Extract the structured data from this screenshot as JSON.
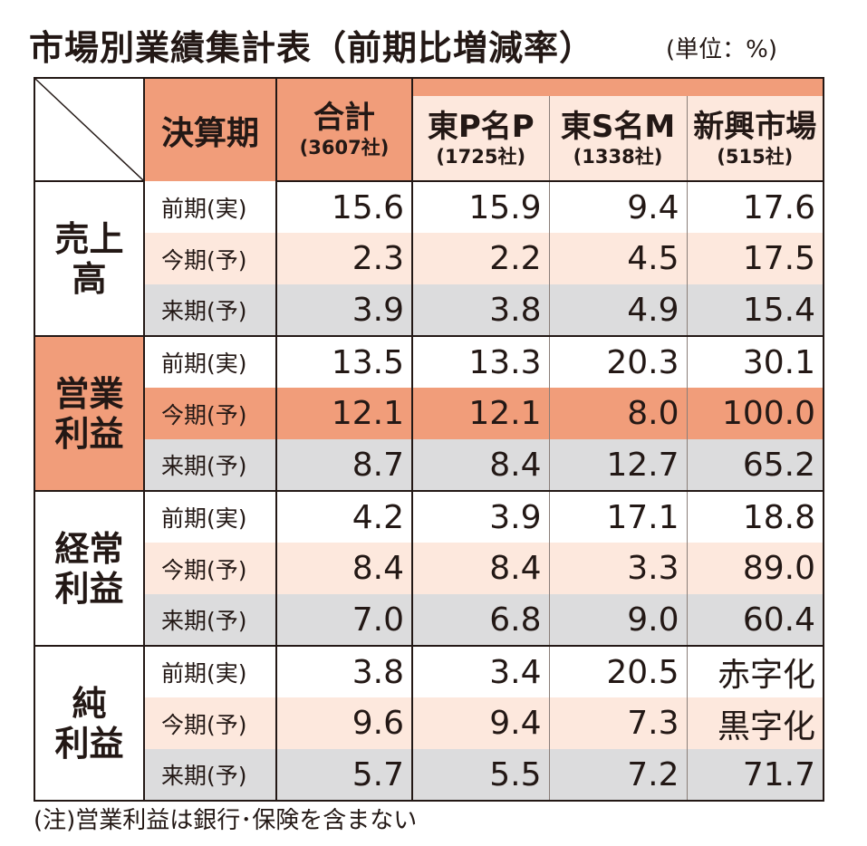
{
  "title": "市場別業績集計表（前期比増減率）",
  "unit": "(単位：%)",
  "header": {
    "period_col": "決算期",
    "columns": [
      {
        "name": "合計",
        "count": "(3607社)"
      },
      {
        "name": "東P名P",
        "count": "(1725社)"
      },
      {
        "name": "東S名M",
        "count": "(1338社)"
      },
      {
        "name": "新興市場",
        "count": "(515社)"
      }
    ]
  },
  "groups": [
    {
      "line1": "売上",
      "line2": "高",
      "rows": [
        {
          "period": "前期(実)",
          "values": [
            "15.6",
            "15.9",
            "9.4",
            "17.6"
          ]
        },
        {
          "period": "今期(予)",
          "values": [
            "2.3",
            "2.2",
            "4.5",
            "17.5"
          ]
        },
        {
          "period": "来期(予)",
          "values": [
            "3.9",
            "3.8",
            "4.9",
            "15.4"
          ]
        }
      ]
    },
    {
      "line1": "営業",
      "line2": "利益",
      "rows": [
        {
          "period": "前期(実)",
          "values": [
            "13.5",
            "13.3",
            "20.3",
            "30.1"
          ]
        },
        {
          "period": "今期(予)",
          "values": [
            "12.1",
            "12.1",
            "8.0",
            "100.0"
          ]
        },
        {
          "period": "来期(予)",
          "values": [
            "8.7",
            "8.4",
            "12.7",
            "65.2"
          ]
        }
      ]
    },
    {
      "line1": "経常",
      "line2": "利益",
      "rows": [
        {
          "period": "前期(実)",
          "values": [
            "4.2",
            "3.9",
            "17.1",
            "18.8"
          ]
        },
        {
          "period": "今期(予)",
          "values": [
            "8.4",
            "8.4",
            "3.3",
            "89.0"
          ]
        },
        {
          "period": "来期(予)",
          "values": [
            "7.0",
            "6.8",
            "9.0",
            "60.4"
          ]
        }
      ]
    },
    {
      "line1": "純",
      "line2": "利益",
      "rows": [
        {
          "period": "前期(実)",
          "values": [
            "3.8",
            "3.4",
            "20.5",
            "赤字化"
          ]
        },
        {
          "period": "今期(予)",
          "values": [
            "9.6",
            "9.4",
            "7.3",
            "黒字化"
          ]
        },
        {
          "period": "来期(予)",
          "values": [
            "5.7",
            "5.5",
            "7.2",
            "71.7"
          ]
        }
      ]
    }
  ],
  "note": "(注)営業利益は銀行･保険を含まない",
  "colors": {
    "accent": "#f19d7a",
    "light_row": "#fde8dd",
    "gray_row": "#dcdcdd",
    "border": "#231815"
  }
}
